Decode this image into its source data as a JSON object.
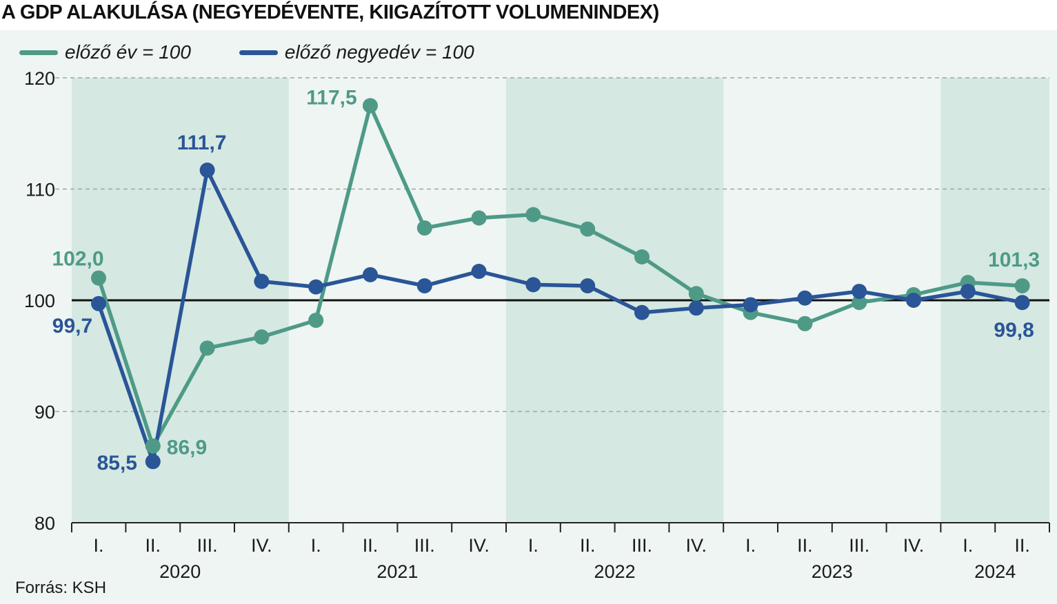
{
  "title": "A GDP ALAKULÁSA (NEGYEDÉVENTE, KIIGAZÍTOTT VOLUMENINDEX)",
  "source": "Forrás: KSH",
  "colors": {
    "green": "#4e9a87",
    "blue": "#2a5597",
    "band": "#d5e8e1",
    "panel": "#eef5f2"
  },
  "chart_data": {
    "type": "line",
    "x": [
      "I.",
      "II.",
      "III.",
      "IV.",
      "I.",
      "II.",
      "III.",
      "IV.",
      "I.",
      "II.",
      "III.",
      "IV.",
      "I.",
      "II.",
      "III.",
      "IV.",
      "I.",
      "II."
    ],
    "years": [
      "2020",
      "2021",
      "2022",
      "2023",
      "2024"
    ],
    "ylim": [
      80,
      120
    ],
    "yticks": [
      "80",
      "90",
      "100",
      "110",
      "120"
    ],
    "reference_line": 100,
    "grid": true,
    "legend_position": "top-left",
    "series": [
      {
        "name": "előző év = 100",
        "color": "#4e9a87",
        "values": [
          102.0,
          86.9,
          95.7,
          96.7,
          98.2,
          117.5,
          106.5,
          107.4,
          107.7,
          106.4,
          103.9,
          100.6,
          98.9,
          97.9,
          99.8,
          100.5,
          101.6,
          101.3
        ]
      },
      {
        "name": "előző negyedév = 100",
        "color": "#2a5597",
        "values": [
          99.7,
          85.5,
          111.7,
          101.7,
          101.2,
          102.3,
          101.3,
          102.6,
          101.4,
          101.3,
          98.9,
          99.3,
          99.6,
          100.2,
          100.8,
          100.0,
          100.8,
          99.8
        ]
      }
    ],
    "annotations": [
      {
        "series": 0,
        "index": 0,
        "label": "102,0"
      },
      {
        "series": 0,
        "index": 1,
        "label": "86,9"
      },
      {
        "series": 0,
        "index": 5,
        "label": "117,5"
      },
      {
        "series": 0,
        "index": 17,
        "label": "101,3"
      },
      {
        "series": 1,
        "index": 0,
        "label": "99,7"
      },
      {
        "series": 1,
        "index": 1,
        "label": "85,5"
      },
      {
        "series": 1,
        "index": 2,
        "label": "111,7"
      },
      {
        "series": 1,
        "index": 17,
        "label": "99,8"
      }
    ]
  }
}
